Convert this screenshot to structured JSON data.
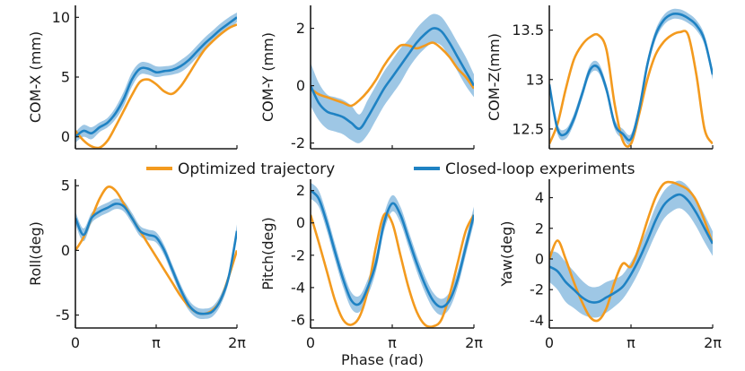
{
  "colors": {
    "optimized": "#f39a1e",
    "experiment": "#1f82c3",
    "band": "#8dbde0",
    "axis": "#1a1a1a"
  },
  "legend": {
    "optimized_label": "Optimized trajectory",
    "experiment_label": "Closed-loop experiments"
  },
  "x_axis": {
    "label": "Phase (rad)",
    "ticks": [
      "0",
      "π",
      "2π"
    ],
    "tick_values": [
      0,
      3.14159,
      6.28319
    ]
  },
  "chart_data": [
    {
      "type": "line",
      "ylabel": "COM-X (mm)",
      "xlim": [
        0,
        6.28319
      ],
      "ylim": [
        -1,
        11
      ],
      "yticks": [
        0,
        5,
        10
      ],
      "ytick_labels": [
        "0",
        "5",
        "10"
      ],
      "grid": false,
      "x": [
        0,
        0.314,
        0.628,
        0.942,
        1.257,
        1.571,
        1.885,
        2.199,
        2.513,
        2.827,
        3.142,
        3.456,
        3.77,
        4.084,
        4.398,
        4.712,
        5.027,
        5.341,
        5.655,
        5.969,
        6.283
      ],
      "series": [
        {
          "name": "Optimized trajectory",
          "values": [
            0.5,
            -0.3,
            -0.8,
            -0.9,
            -0.3,
            0.9,
            2.2,
            3.5,
            4.6,
            4.8,
            4.4,
            3.8,
            3.6,
            4.2,
            5.2,
            6.3,
            7.3,
            8.0,
            8.6,
            9.1,
            9.4
          ]
        },
        {
          "name": "Closed-loop experiments",
          "values": [
            0.0,
            0.5,
            0.3,
            0.8,
            1.2,
            2.0,
            3.2,
            4.8,
            5.7,
            5.7,
            5.4,
            5.5,
            5.6,
            5.9,
            6.4,
            7.1,
            7.8,
            8.4,
            9.0,
            9.5,
            10.0
          ],
          "lower": [
            -0.5,
            0.0,
            -0.2,
            0.4,
            0.8,
            1.5,
            2.6,
            4.2,
            5.2,
            5.2,
            5.0,
            5.1,
            5.2,
            5.4,
            5.9,
            6.6,
            7.3,
            7.9,
            8.5,
            9.0,
            9.6
          ],
          "upper": [
            0.4,
            1.0,
            0.8,
            1.2,
            1.6,
            2.5,
            3.8,
            5.4,
            6.2,
            6.2,
            5.9,
            5.9,
            6.0,
            6.4,
            6.9,
            7.6,
            8.3,
            8.9,
            9.5,
            10.0,
            10.4
          ]
        }
      ]
    },
    {
      "type": "line",
      "ylabel": "COM-Y (mm)",
      "xlim": [
        0,
        6.28319
      ],
      "ylim": [
        -2.2,
        2.8
      ],
      "yticks": [
        -2,
        0,
        2
      ],
      "ytick_labels": [
        "-2",
        "0",
        "2"
      ],
      "grid": false,
      "x": [
        0,
        0.314,
        0.628,
        0.942,
        1.257,
        1.571,
        1.885,
        2.199,
        2.513,
        2.827,
        3.142,
        3.456,
        3.77,
        4.084,
        4.398,
        4.712,
        5.027,
        5.341,
        5.655,
        5.969,
        6.283
      ],
      "series": [
        {
          "name": "Optimized trajectory",
          "values": [
            -0.1,
            -0.3,
            -0.4,
            -0.5,
            -0.6,
            -0.7,
            -0.5,
            -0.2,
            0.2,
            0.7,
            1.1,
            1.4,
            1.4,
            1.3,
            1.4,
            1.5,
            1.3,
            1.0,
            0.6,
            0.3,
            -0.1
          ]
        },
        {
          "name": "Closed-loop experiments",
          "values": [
            0.0,
            -0.6,
            -0.9,
            -1.0,
            -1.1,
            -1.3,
            -1.5,
            -1.1,
            -0.6,
            -0.1,
            0.3,
            0.7,
            1.1,
            1.5,
            1.8,
            2.0,
            1.9,
            1.5,
            1.0,
            0.5,
            0.0
          ],
          "lower": [
            -0.7,
            -1.2,
            -1.5,
            -1.6,
            -1.7,
            -1.9,
            -2.0,
            -1.7,
            -1.2,
            -0.7,
            -0.3,
            0.1,
            0.6,
            1.0,
            1.3,
            1.5,
            1.4,
            1.0,
            0.5,
            0.0,
            -0.4
          ],
          "upper": [
            0.8,
            0.1,
            -0.3,
            -0.4,
            -0.5,
            -0.7,
            -1.0,
            -0.5,
            0.0,
            0.5,
            0.9,
            1.3,
            1.6,
            2.0,
            2.3,
            2.5,
            2.4,
            2.0,
            1.5,
            1.0,
            0.4
          ]
        }
      ]
    },
    {
      "type": "line",
      "ylabel": "COM-Z(mm)",
      "xlim": [
        0,
        6.28319
      ],
      "ylim": [
        12.3,
        13.75
      ],
      "yticks": [
        12.5,
        13,
        13.5
      ],
      "ytick_labels": [
        "12.5",
        "13",
        "13.5"
      ],
      "grid": false,
      "x": [
        0,
        0.314,
        0.628,
        0.942,
        1.257,
        1.571,
        1.885,
        2.199,
        2.513,
        2.827,
        3.142,
        3.456,
        3.77,
        4.084,
        4.398,
        4.712,
        5.027,
        5.341,
        5.655,
        5.969,
        6.283
      ],
      "series": [
        {
          "name": "Optimized trajectory",
          "values": [
            12.35,
            12.55,
            12.9,
            13.2,
            13.35,
            13.43,
            13.45,
            13.3,
            12.75,
            12.38,
            12.35,
            12.65,
            13.0,
            13.25,
            13.38,
            13.45,
            13.48,
            13.45,
            13.05,
            12.5,
            12.35
          ]
        },
        {
          "name": "Closed-loop experiments",
          "values": [
            12.95,
            12.5,
            12.45,
            12.6,
            12.85,
            13.1,
            13.12,
            12.9,
            12.55,
            12.45,
            12.4,
            12.7,
            13.15,
            13.45,
            13.6,
            13.66,
            13.66,
            13.62,
            13.55,
            13.4,
            13.05
          ],
          "lower": [
            12.9,
            12.45,
            12.4,
            12.55,
            12.8,
            13.05,
            13.07,
            12.85,
            12.5,
            12.4,
            12.35,
            12.65,
            13.1,
            13.4,
            13.55,
            13.61,
            13.61,
            13.57,
            13.5,
            13.35,
            13.0
          ],
          "upper": [
            13.0,
            12.55,
            12.5,
            12.65,
            12.9,
            13.15,
            13.17,
            12.95,
            12.6,
            12.5,
            12.45,
            12.75,
            13.2,
            13.5,
            13.65,
            13.71,
            13.71,
            13.67,
            13.6,
            13.45,
            13.1
          ]
        }
      ]
    },
    {
      "type": "line",
      "ylabel": "Roll(deg)",
      "xlim": [
        0,
        6.28319
      ],
      "ylim": [
        -6,
        5.5
      ],
      "yticks": [
        -5,
        0,
        5
      ],
      "ytick_labels": [
        "-5",
        "0",
        "5"
      ],
      "grid": false,
      "x": [
        0,
        0.314,
        0.628,
        0.942,
        1.257,
        1.571,
        1.885,
        2.199,
        2.513,
        2.827,
        3.142,
        3.456,
        3.77,
        4.084,
        4.398,
        4.712,
        5.027,
        5.341,
        5.655,
        5.969,
        6.283
      ],
      "series": [
        {
          "name": "Optimized trajectory",
          "values": [
            0.0,
            1.0,
            2.5,
            4.0,
            4.9,
            4.6,
            3.6,
            2.5,
            1.5,
            0.5,
            -0.5,
            -1.5,
            -2.5,
            -3.5,
            -4.3,
            -4.8,
            -4.9,
            -4.6,
            -3.8,
            -2.0,
            0.0
          ]
        },
        {
          "name": "Closed-loop experiments",
          "values": [
            2.5,
            1.2,
            2.5,
            3.0,
            3.3,
            3.6,
            3.4,
            2.5,
            1.5,
            1.2,
            1.0,
            0.0,
            -1.5,
            -3.0,
            -4.2,
            -4.8,
            -4.9,
            -4.7,
            -3.8,
            -2.0,
            1.5
          ],
          "lower": [
            2.0,
            0.7,
            2.1,
            2.6,
            2.9,
            3.2,
            3.0,
            2.1,
            1.1,
            0.8,
            0.6,
            -0.4,
            -1.9,
            -3.4,
            -4.6,
            -5.2,
            -5.3,
            -5.1,
            -4.2,
            -2.4,
            1.0
          ],
          "upper": [
            3.0,
            1.7,
            2.9,
            3.4,
            3.7,
            4.0,
            3.8,
            2.9,
            1.9,
            1.6,
            1.4,
            0.4,
            -1.1,
            -2.6,
            -3.8,
            -4.4,
            -4.5,
            -4.3,
            -3.4,
            -1.6,
            2.0
          ]
        }
      ]
    },
    {
      "type": "line",
      "ylabel": "Pitch(deg)",
      "xlim": [
        0,
        6.28319
      ],
      "ylim": [
        -6.5,
        2.7
      ],
      "yticks": [
        -6,
        -4,
        -2,
        0,
        2
      ],
      "ytick_labels": [
        "-6",
        "-4",
        "-2",
        "0",
        "2"
      ],
      "grid": false,
      "x": [
        0,
        0.314,
        0.628,
        0.942,
        1.257,
        1.571,
        1.885,
        2.199,
        2.513,
        2.827,
        3.142,
        3.456,
        3.77,
        4.084,
        4.398,
        4.712,
        5.027,
        5.341,
        5.655,
        5.969,
        6.283
      ],
      "series": [
        {
          "name": "Optimized trajectory",
          "values": [
            0.5,
            -1.2,
            -3.0,
            -4.8,
            -6.0,
            -6.3,
            -5.8,
            -4.2,
            -1.5,
            0.5,
            0.0,
            -2.0,
            -4.0,
            -5.5,
            -6.3,
            -6.4,
            -6.0,
            -4.5,
            -2.5,
            -0.5,
            0.5
          ]
        },
        {
          "name": "Closed-loop experiments",
          "values": [
            2.0,
            1.5,
            0.0,
            -1.8,
            -3.5,
            -4.8,
            -5.0,
            -4.0,
            -2.5,
            0.0,
            1.2,
            0.5,
            -1.0,
            -2.5,
            -3.8,
            -4.8,
            -5.2,
            -4.8,
            -3.5,
            -1.5,
            0.5
          ],
          "lower": [
            1.5,
            1.0,
            -0.5,
            -2.3,
            -4.0,
            -5.3,
            -5.5,
            -4.5,
            -3.0,
            -0.5,
            0.7,
            0.0,
            -1.5,
            -3.0,
            -4.3,
            -5.3,
            -5.7,
            -5.3,
            -4.0,
            -2.0,
            0.0
          ],
          "upper": [
            2.5,
            2.0,
            0.5,
            -1.3,
            -3.0,
            -4.3,
            -4.5,
            -3.5,
            -2.0,
            0.5,
            1.7,
            1.0,
            -0.5,
            -2.0,
            -3.3,
            -4.3,
            -4.7,
            -4.3,
            -3.0,
            -1.0,
            1.0
          ]
        }
      ]
    },
    {
      "type": "line",
      "ylabel": "Yaw(deg)",
      "xlim": [
        0,
        6.28319
      ],
      "ylim": [
        -4.5,
        5.2
      ],
      "yticks": [
        -4,
        -2,
        0,
        2,
        4
      ],
      "ytick_labels": [
        "-4",
        "-2",
        "0",
        "2",
        "4"
      ],
      "grid": false,
      "x": [
        0,
        0.314,
        0.628,
        0.942,
        1.257,
        1.571,
        1.885,
        2.199,
        2.513,
        2.827,
        3.142,
        3.456,
        3.77,
        4.084,
        4.398,
        4.712,
        5.027,
        5.341,
        5.655,
        5.969,
        6.283
      ],
      "series": [
        {
          "name": "Optimized trajectory",
          "values": [
            0.0,
            1.2,
            0.0,
            -1.5,
            -2.8,
            -3.8,
            -4.0,
            -3.2,
            -1.5,
            -0.3,
            -0.5,
            0.8,
            2.5,
            4.0,
            4.9,
            5.0,
            4.8,
            4.5,
            3.8,
            2.5,
            1.0
          ]
        },
        {
          "name": "Closed-loop experiments",
          "values": [
            -0.5,
            -0.8,
            -1.5,
            -2.0,
            -2.5,
            -2.8,
            -2.8,
            -2.5,
            -2.2,
            -1.8,
            -1.0,
            0.0,
            1.2,
            2.5,
            3.5,
            4.0,
            4.2,
            3.8,
            3.0,
            2.0,
            1.0
          ],
          "lower": [
            -1.5,
            -2.0,
            -2.8,
            -3.2,
            -3.6,
            -3.8,
            -3.8,
            -3.5,
            -3.1,
            -2.6,
            -1.8,
            -0.8,
            0.4,
            1.6,
            2.6,
            3.1,
            3.3,
            2.9,
            2.1,
            1.1,
            0.2
          ],
          "upper": [
            0.5,
            0.4,
            -0.2,
            -0.8,
            -1.4,
            -1.8,
            -1.8,
            -1.5,
            -1.3,
            -1.0,
            -0.2,
            0.8,
            2.0,
            3.4,
            4.4,
            4.9,
            5.1,
            4.7,
            3.9,
            2.9,
            1.8
          ]
        }
      ]
    }
  ]
}
